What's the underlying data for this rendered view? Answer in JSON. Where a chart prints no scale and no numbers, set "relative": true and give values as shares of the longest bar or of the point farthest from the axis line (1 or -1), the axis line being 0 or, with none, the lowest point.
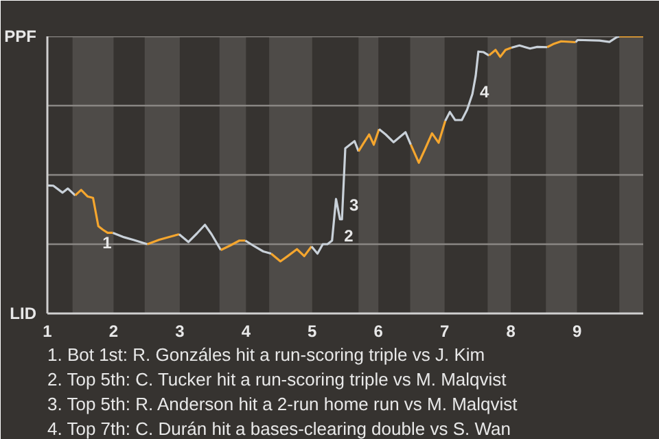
{
  "chart_data": {
    "type": "line",
    "relative": true,
    "xlim": [
      1,
      10
    ],
    "xticks": [
      1,
      2,
      3,
      4,
      5,
      6,
      7,
      8,
      9
    ],
    "marker": "none",
    "line_style": "solid",
    "series": [
      {
        "color": "#c9d1d9",
        "x": [
          1.0,
          1.09,
          1.23,
          1.31,
          1.42
        ],
        "values": [
          0.462,
          0.461,
          0.436,
          0.451,
          0.426
        ]
      },
      {
        "color": "#f5a62e",
        "x": [
          1.42,
          1.51,
          1.61,
          1.69,
          1.77,
          1.84,
          1.91,
          1.99
        ],
        "values": [
          0.426,
          0.446,
          0.422,
          0.417,
          0.315,
          0.302,
          0.291,
          0.291
        ]
      },
      {
        "color": "#c9d1d9",
        "x": [
          1.99,
          2.16,
          2.31,
          2.51
        ],
        "values": [
          0.291,
          0.275,
          0.265,
          0.25
        ]
      },
      {
        "color": "#f5a62e",
        "x": [
          2.51,
          2.69,
          2.99
        ],
        "values": [
          0.25,
          0.266,
          0.286
        ]
      },
      {
        "color": "#c9d1d9",
        "x": [
          2.99,
          3.13,
          3.26,
          3.38,
          3.48,
          3.62
        ],
        "values": [
          0.286,
          0.258,
          0.289,
          0.32,
          0.286,
          0.229
        ]
      },
      {
        "color": "#f5a62e",
        "x": [
          3.62,
          3.76,
          3.9,
          3.99
        ],
        "values": [
          0.229,
          0.245,
          0.263,
          0.263
        ]
      },
      {
        "color": "#c9d1d9",
        "x": [
          3.99,
          4.13,
          4.26,
          4.38
        ],
        "values": [
          0.263,
          0.242,
          0.224,
          0.216
        ]
      },
      {
        "color": "#f5a62e",
        "x": [
          4.38,
          4.52,
          4.63,
          4.77,
          4.88,
          4.99
        ],
        "values": [
          0.216,
          0.188,
          0.207,
          0.232,
          0.207,
          0.242
        ]
      },
      {
        "color": "#c9d1d9",
        "x": [
          4.99,
          5.08,
          5.16,
          5.23,
          5.3,
          5.36,
          5.42,
          5.45,
          5.5,
          5.64,
          5.7
        ],
        "values": [
          0.242,
          0.216,
          0.25,
          0.25,
          0.263,
          0.413,
          0.34,
          0.34,
          0.596,
          0.622,
          0.585
        ]
      },
      {
        "color": "#f5a62e",
        "x": [
          5.7,
          5.78,
          5.86,
          5.93,
          6.01
        ],
        "values": [
          0.585,
          0.616,
          0.646,
          0.609,
          0.665
        ]
      },
      {
        "color": "#c9d1d9",
        "x": [
          6.01,
          6.11,
          6.23,
          6.41,
          6.49
        ],
        "values": [
          0.665,
          0.646,
          0.618,
          0.654,
          0.609
        ]
      },
      {
        "color": "#f5a62e",
        "x": [
          6.49,
          6.61,
          6.71,
          6.81,
          6.91,
          7.01
        ],
        "values": [
          0.609,
          0.544,
          0.596,
          0.65,
          0.616,
          0.695
        ]
      },
      {
        "color": "#c9d1d9",
        "x": [
          7.01,
          7.08,
          7.16,
          7.26,
          7.34,
          7.42,
          7.47,
          7.51,
          7.59,
          7.67
        ],
        "values": [
          0.695,
          0.727,
          0.698,
          0.698,
          0.735,
          0.792,
          0.858,
          0.945,
          0.943,
          0.931
        ]
      },
      {
        "color": "#f5a62e",
        "x": [
          7.67,
          7.77,
          7.84,
          7.92,
          8.01
        ],
        "values": [
          0.931,
          0.951,
          0.926,
          0.951,
          0.959
        ]
      },
      {
        "color": "#c9d1d9",
        "x": [
          8.01,
          8.13,
          8.29,
          8.4,
          8.55
        ],
        "values": [
          0.959,
          0.967,
          0.956,
          0.962,
          0.961
        ]
      },
      {
        "color": "#f5a62e",
        "x": [
          8.55,
          8.64,
          8.76,
          8.98
        ],
        "values": [
          0.961,
          0.972,
          0.982,
          0.979
        ]
      },
      {
        "color": "#c9d1d9",
        "x": [
          8.98,
          9.01,
          9.34,
          9.49,
          9.6,
          9.64
        ],
        "values": [
          0.979,
          0.987,
          0.985,
          0.98,
          0.997,
          1.0
        ]
      },
      {
        "color": "#f5a62e",
        "x": [
          9.64,
          10.0
        ],
        "values": [
          1.0,
          1.0
        ]
      }
    ],
    "ref_lines": [
      {
        "axis": "y",
        "value": 0.25,
        "color": "#8a8784"
      },
      {
        "axis": "y",
        "value": 0.5,
        "color": "#8a8784"
      },
      {
        "axis": "y",
        "value": 0.75,
        "color": "#8a8784"
      },
      {
        "axis": "y",
        "value": 1,
        "color": "#8a8784"
      }
    ],
    "bands": [
      {
        "axis": "x",
        "from": 1.38,
        "to": 2,
        "color": "#4e4b48"
      },
      {
        "axis": "x",
        "from": 2.47,
        "to": 3,
        "color": "#4e4b48"
      },
      {
        "axis": "x",
        "from": 3.6,
        "to": 4,
        "color": "#4e4b48"
      },
      {
        "axis": "x",
        "from": 4.35,
        "to": 5,
        "color": "#4e4b48"
      },
      {
        "axis": "x",
        "from": 5.7,
        "to": 6,
        "color": "#4e4b48"
      },
      {
        "axis": "x",
        "from": 6.48,
        "to": 7,
        "color": "#4e4b48"
      },
      {
        "axis": "x",
        "from": 7.65,
        "to": 8,
        "color": "#4e4b48"
      },
      {
        "axis": "x",
        "from": 8.53,
        "to": 9,
        "color": "#4e4b48"
      },
      {
        "axis": "x",
        "from": 9.64,
        "to": 10,
        "color": "#4e4b48"
      }
    ],
    "annotations": [
      "PPF",
      "LID",
      {
        "text": "1",
        "x": 1.77,
        "y": 0.315
      },
      {
        "text": "2",
        "x": 5.42,
        "y": 0.34
      },
      {
        "text": "3",
        "x": 5.5,
        "y": 0.45
      },
      {
        "text": "4",
        "x": 7.47,
        "y": 0.858
      },
      "1. Bot 1st: R. Gonzáles hit a run-scoring triple vs J. Kim",
      "2. Top 5th: C. Tucker hit a run-scoring triple vs M. Malqvist",
      "3. Top 5th: R. Anderson hit a 2-run home run vs M. Malqvist",
      "4. Top 7th: C. Durán hit a bases-clearing double vs S. Wan"
    ]
  }
}
